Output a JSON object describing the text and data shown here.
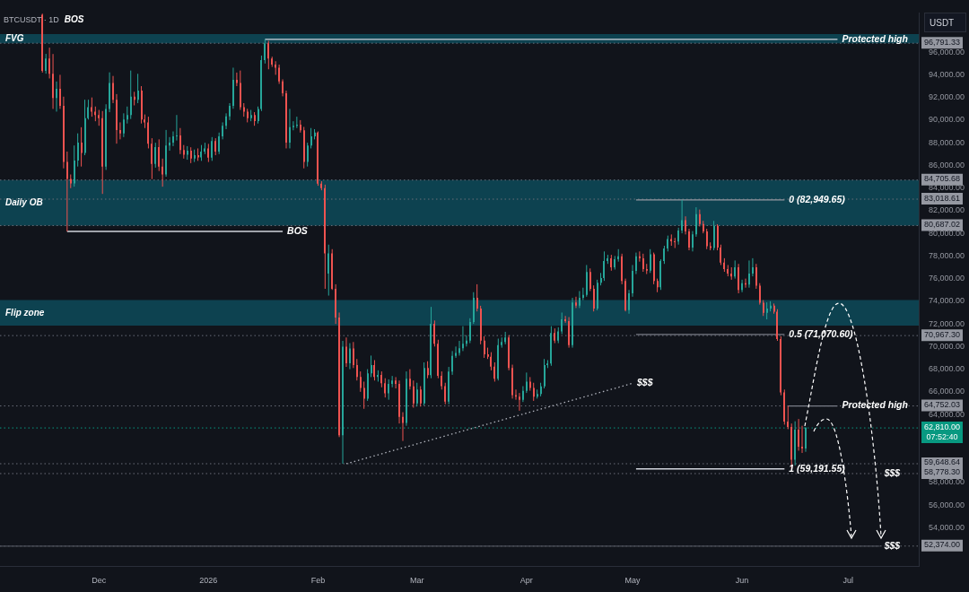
{
  "chart_data": {
    "type": "candlestick",
    "title": "BTCUSDT · 1D",
    "ylabel": "USDT",
    "x": [
      "2025-11-15",
      "2025-11-16",
      "2025-11-17",
      "2025-11-18",
      "2025-11-19",
      "2025-11-20",
      "2025-11-21",
      "2025-11-22",
      "2025-11-23",
      "2025-11-24",
      "2025-11-25",
      "2025-11-26",
      "2025-11-27",
      "2025-11-28",
      "2025-11-29",
      "2025-11-30",
      "2025-12-01",
      "2025-12-02",
      "2025-12-03",
      "2025-12-04",
      "2025-12-05",
      "2025-12-06",
      "2025-12-07",
      "2025-12-08",
      "2025-12-09",
      "2025-12-10",
      "2025-12-11",
      "2025-12-12",
      "2025-12-13",
      "2025-12-14",
      "2025-12-15",
      "2025-12-16",
      "2025-12-17",
      "2025-12-18",
      "2025-12-19",
      "2025-12-20",
      "2025-12-21",
      "2025-12-22",
      "2025-12-23",
      "2025-12-24",
      "2025-12-25",
      "2025-12-26",
      "2025-12-27",
      "2025-12-28",
      "2025-12-29",
      "2025-12-30",
      "2025-12-31",
      "2026-01-01",
      "2026-01-02",
      "2026-01-03",
      "2026-01-04",
      "2026-01-05",
      "2026-01-06",
      "2026-01-07",
      "2026-01-08",
      "2026-01-09",
      "2026-01-10",
      "2026-01-11",
      "2026-01-12",
      "2026-01-13",
      "2026-01-14",
      "2026-01-15",
      "2026-01-16",
      "2026-01-17",
      "2026-01-18",
      "2026-01-19",
      "2026-01-20",
      "2026-01-21",
      "2026-01-22",
      "2026-01-23",
      "2026-01-24",
      "2026-01-25",
      "2026-01-26",
      "2026-01-27",
      "2026-01-28",
      "2026-01-29",
      "2026-01-30",
      "2026-01-31",
      "2026-02-01",
      "2026-02-02",
      "2026-02-03",
      "2026-02-04",
      "2026-02-05",
      "2026-02-06",
      "2026-02-07",
      "2026-02-08",
      "2026-02-09",
      "2026-02-10",
      "2026-02-11",
      "2026-02-12",
      "2026-02-13",
      "2026-02-14",
      "2026-02-15",
      "2026-02-16",
      "2026-02-17",
      "2026-02-18",
      "2026-02-19",
      "2026-02-20",
      "2026-02-21",
      "2026-02-22",
      "2026-02-23",
      "2026-02-24",
      "2026-02-25",
      "2026-02-26",
      "2026-02-27",
      "2026-02-28",
      "2026-03-01",
      "2026-03-02",
      "2026-03-03",
      "2026-03-04",
      "2026-03-05",
      "2026-03-06",
      "2026-03-07",
      "2026-03-08",
      "2026-03-09",
      "2026-03-10",
      "2026-03-11",
      "2026-03-12",
      "2026-03-13",
      "2026-03-14",
      "2026-03-15",
      "2026-03-16",
      "2026-03-17",
      "2026-03-18",
      "2026-03-19",
      "2026-03-20",
      "2026-03-21",
      "2026-03-22",
      "2026-03-23",
      "2026-03-24",
      "2026-03-25",
      "2026-03-26",
      "2026-03-27",
      "2026-03-28",
      "2026-03-29",
      "2026-03-30",
      "2026-03-31",
      "2026-04-01",
      "2026-04-02",
      "2026-04-03",
      "2026-04-04",
      "2026-04-05",
      "2026-04-06",
      "2026-04-07",
      "2026-04-08",
      "2026-04-09",
      "2026-04-10",
      "2026-04-11",
      "2026-04-12",
      "2026-04-13",
      "2026-04-14",
      "2026-04-15",
      "2026-04-16",
      "2026-04-17",
      "2026-04-18",
      "2026-04-19",
      "2026-04-20",
      "2026-04-21",
      "2026-04-22",
      "2026-04-23",
      "2026-04-24",
      "2026-04-25",
      "2026-04-26",
      "2026-04-27",
      "2026-04-28",
      "2026-04-29",
      "2026-04-30",
      "2026-05-01",
      "2026-05-02",
      "2026-05-03",
      "2026-05-04",
      "2026-05-05",
      "2026-05-06",
      "2026-05-07",
      "2026-05-08",
      "2026-05-09",
      "2026-05-10",
      "2026-05-11",
      "2026-05-12",
      "2026-05-13",
      "2026-05-14",
      "2026-05-15",
      "2026-05-16",
      "2026-05-17",
      "2026-05-18",
      "2026-05-19",
      "2026-05-20",
      "2026-05-21",
      "2026-05-22",
      "2026-05-23",
      "2026-05-24",
      "2026-05-25",
      "2026-05-26",
      "2026-05-27",
      "2026-05-28",
      "2026-05-29",
      "2026-05-30",
      "2026-05-31",
      "2026-06-01",
      "2026-06-02",
      "2026-06-03",
      "2026-06-04",
      "2026-06-05",
      "2026-06-06",
      "2026-06-07",
      "2026-06-08",
      "2026-06-09",
      "2026-06-10",
      "2026-06-11",
      "2026-06-12",
      "2026-06-13",
      "2026-06-14",
      "2026-06-15",
      "2026-06-16",
      "2026-06-17",
      "2026-06-18",
      "2026-06-19"
    ],
    "ohlc": [
      [
        99300,
        99400,
        94200,
        94360
      ],
      [
        94360,
        95850,
        94100,
        95430
      ],
      [
        95430,
        96400,
        93680,
        94090
      ],
      [
        94090,
        95840,
        90990,
        91960
      ],
      [
        91960,
        93410,
        90750,
        92770
      ],
      [
        92770,
        94000,
        90990,
        91260
      ],
      [
        91260,
        92070,
        85740,
        86300
      ],
      [
        86300,
        87220,
        80170,
        84800
      ],
      [
        84800,
        85200,
        83990,
        84400
      ],
      [
        84400,
        87760,
        84120,
        86420
      ],
      [
        86420,
        88830,
        85900,
        88020
      ],
      [
        88020,
        89370,
        85900,
        87110
      ],
      [
        87110,
        91800,
        86900,
        90180
      ],
      [
        90180,
        91800,
        90050,
        91150
      ],
      [
        91150,
        92000,
        90300,
        90750
      ],
      [
        90750,
        91200,
        89900,
        90450
      ],
      [
        90450,
        90900,
        89500,
        90180
      ],
      [
        90180,
        90800,
        83480,
        85900
      ],
      [
        85900,
        91400,
        85600,
        90990
      ],
      [
        90990,
        94220,
        90700,
        93280
      ],
      [
        93280,
        93900,
        91500,
        91800
      ],
      [
        91800,
        92300,
        87920,
        89130
      ],
      [
        89130,
        89800,
        88300,
        88830
      ],
      [
        88830,
        90600,
        88500,
        90050
      ],
      [
        90050,
        91200,
        89700,
        90450
      ],
      [
        90450,
        94380,
        90100,
        92070
      ],
      [
        92070,
        92500,
        91300,
        91800
      ],
      [
        91800,
        94090,
        91500,
        92600
      ],
      [
        92600,
        93000,
        89700,
        90050
      ],
      [
        90050,
        90500,
        89300,
        89800
      ],
      [
        89800,
        90300,
        87500,
        87920
      ],
      [
        87920,
        88400,
        84790,
        86140
      ],
      [
        86140,
        88000,
        85800,
        87620
      ],
      [
        87620,
        88300,
        85500,
        85900
      ],
      [
        85900,
        86600,
        84120,
        85200
      ],
      [
        85200,
        89130,
        85000,
        87760
      ],
      [
        87760,
        88500,
        87300,
        88020
      ],
      [
        88020,
        89000,
        87700,
        88560
      ],
      [
        88560,
        90450,
        88200,
        88650
      ],
      [
        88650,
        89300,
        87000,
        87360
      ],
      [
        87360,
        87800,
        86600,
        86950
      ],
      [
        86950,
        87700,
        86500,
        87300
      ],
      [
        87300,
        87600,
        86200,
        86600
      ],
      [
        86600,
        87400,
        86300,
        86900
      ],
      [
        86900,
        87500,
        86400,
        86700
      ],
      [
        86700,
        87800,
        86400,
        87220
      ],
      [
        87220,
        88000,
        87000,
        87490
      ],
      [
        87490,
        87900,
        86300,
        86680
      ],
      [
        86680,
        88500,
        86400,
        88160
      ],
      [
        88160,
        88400,
        86900,
        87220
      ],
      [
        87220,
        88900,
        87000,
        88560
      ],
      [
        88560,
        89800,
        88300,
        89500
      ],
      [
        89500,
        90600,
        89200,
        90320
      ],
      [
        90320,
        91500,
        90000,
        91260
      ],
      [
        91260,
        94630,
        91000,
        93550
      ],
      [
        93550,
        94200,
        93000,
        93280
      ],
      [
        93280,
        94380,
        90900,
        91150
      ],
      [
        91150,
        91500,
        90300,
        90750
      ],
      [
        90750,
        91000,
        89800,
        90180
      ],
      [
        90180,
        90900,
        89900,
        90450
      ],
      [
        90450,
        90700,
        89500,
        89910
      ],
      [
        89910,
        91200,
        89700,
        90990
      ],
      [
        90990,
        95700,
        90800,
        95300
      ],
      [
        95300,
        97130,
        95000,
        96780
      ],
      [
        96780,
        97000,
        94490,
        95430
      ],
      [
        95430,
        95600,
        94700,
        94900
      ],
      [
        94900,
        95200,
        94000,
        94630
      ],
      [
        94630,
        94900,
        93200,
        93410
      ],
      [
        93410,
        93600,
        92100,
        92360
      ],
      [
        92360,
        92600,
        87500,
        88020
      ],
      [
        88020,
        90990,
        87500,
        89370
      ],
      [
        89370,
        89900,
        89100,
        89500
      ],
      [
        89500,
        90300,
        89300,
        89600
      ],
      [
        89600,
        90000,
        88900,
        89100
      ],
      [
        89100,
        89400,
        85740,
        86300
      ],
      [
        86300,
        88000,
        85900,
        87760
      ],
      [
        87760,
        89300,
        87500,
        88560
      ],
      [
        88560,
        89200,
        88300,
        88900
      ],
      [
        88900,
        89000,
        84200,
        84390
      ],
      [
        84390,
        84600,
        83800,
        84000
      ],
      [
        84000,
        84300,
        75100,
        78220
      ],
      [
        76450,
        79000,
        74500,
        78220
      ],
      [
        78220,
        78600,
        75000,
        75100
      ],
      [
        75100,
        75500,
        72000,
        72560
      ],
      [
        72560,
        73000,
        62000,
        62170
      ],
      [
        62170,
        70500,
        59648.64,
        69980
      ],
      [
        69980,
        70800,
        68200,
        68530
      ],
      [
        68530,
        70300,
        68000,
        69820
      ],
      [
        69820,
        70400,
        68100,
        68370
      ],
      [
        68370,
        68900,
        67000,
        67320
      ],
      [
        67320,
        67800,
        66000,
        66350
      ],
      [
        66350,
        66900,
        64500,
        65400
      ],
      [
        65400,
        68000,
        65200,
        67640
      ],
      [
        67640,
        69200,
        67300,
        68370
      ],
      [
        68370,
        68800,
        67000,
        67320
      ],
      [
        67320,
        67900,
        66900,
        67500
      ],
      [
        67500,
        67800,
        66400,
        66750
      ],
      [
        66750,
        67200,
        65500,
        65860
      ],
      [
        65860,
        67100,
        65300,
        66700
      ],
      [
        66700,
        67400,
        66400,
        67000
      ],
      [
        67000,
        67300,
        66300,
        66700
      ],
      [
        66700,
        67000,
        63200,
        63790
      ],
      [
        63790,
        64200,
        61660,
        63250
      ],
      [
        63250,
        67800,
        63000,
        67160
      ],
      [
        67160,
        68000,
        66200,
        66480
      ],
      [
        66480,
        67000,
        64600,
        64980
      ],
      [
        64980,
        66800,
        64700,
        66210
      ],
      [
        66210,
        66500,
        64700,
        64980
      ],
      [
        64980,
        68600,
        64800,
        68100
      ],
      [
        68100,
        68700,
        67200,
        67480
      ],
      [
        67480,
        73500,
        67200,
        72000
      ],
      [
        72000,
        72300,
        70000,
        70250
      ],
      [
        70250,
        70600,
        67200,
        67420
      ],
      [
        67420,
        67800,
        66200,
        66500
      ],
      [
        66500,
        66800,
        64900,
        65130
      ],
      [
        65130,
        68200,
        64900,
        67780
      ],
      [
        67780,
        69600,
        67500,
        69170
      ],
      [
        69170,
        70000,
        69000,
        69440
      ],
      [
        69440,
        70500,
        69200,
        69850
      ],
      [
        69850,
        71800,
        69600,
        70250
      ],
      [
        70250,
        71000,
        70000,
        70520
      ],
      [
        70520,
        72500,
        70300,
        72160
      ],
      [
        72160,
        74800,
        72000,
        74300
      ],
      [
        74300,
        75500,
        73100,
        73350
      ],
      [
        73350,
        73600,
        70200,
        70520
      ],
      [
        70520,
        70900,
        69000,
        69310
      ],
      [
        69310,
        69900,
        68900,
        69100
      ],
      [
        69100,
        69500,
        67900,
        68230
      ],
      [
        68230,
        68600,
        66900,
        67160
      ],
      [
        67160,
        70700,
        67000,
        70120
      ],
      [
        70120,
        70800,
        69900,
        70400
      ],
      [
        70400,
        71300,
        70200,
        70790
      ],
      [
        70790,
        71000,
        67900,
        68100
      ],
      [
        68100,
        68400,
        65400,
        65700
      ],
      [
        65700,
        66200,
        65300,
        65570
      ],
      [
        65570,
        65900,
        64330,
        65300
      ],
      [
        65300,
        66500,
        65100,
        66080
      ],
      [
        66080,
        67700,
        65900,
        66890
      ],
      [
        66890,
        67300,
        66100,
        66350
      ],
      [
        66350,
        66800,
        65200,
        65570
      ],
      [
        65570,
        66200,
        65400,
        65800
      ],
      [
        65800,
        66800,
        65600,
        66480
      ],
      [
        66480,
        68900,
        66300,
        68370
      ],
      [
        68370,
        68800,
        68100,
        68500
      ],
      [
        68500,
        71800,
        68300,
        71190
      ],
      [
        71190,
        71600,
        70300,
        70520
      ],
      [
        70520,
        71700,
        70300,
        71330
      ],
      [
        71330,
        73000,
        71100,
        72400
      ],
      [
        72400,
        72700,
        72100,
        72250
      ],
      [
        72250,
        72600,
        69900,
        70120
      ],
      [
        70120,
        74300,
        69900,
        73890
      ],
      [
        73890,
        74400,
        73400,
        73620
      ],
      [
        73620,
        74900,
        73400,
        74300
      ],
      [
        74300,
        75200,
        74100,
        74570
      ],
      [
        74570,
        77200,
        74400,
        76590
      ],
      [
        76590,
        76900,
        74900,
        75100
      ],
      [
        75100,
        75400,
        73100,
        73350
      ],
      [
        73350,
        75900,
        73200,
        75640
      ],
      [
        75640,
        76500,
        75400,
        76050
      ],
      [
        76050,
        78400,
        75800,
        77560
      ],
      [
        77560,
        78100,
        77300,
        77800
      ],
      [
        77800,
        78100,
        76700,
        76990
      ],
      [
        76990,
        78000,
        76800,
        77710
      ],
      [
        77710,
        78600,
        77500,
        77970
      ],
      [
        77970,
        78200,
        75500,
        75800
      ],
      [
        75800,
        76000,
        73100,
        73220
      ],
      [
        73220,
        75000,
        72900,
        74700
      ],
      [
        74700,
        77200,
        74400,
        76690
      ],
      [
        76690,
        78300,
        76400,
        77970
      ],
      [
        77970,
        78400,
        77500,
        77800
      ],
      [
        77800,
        78200,
        76600,
        76850
      ],
      [
        76850,
        77300,
        76400,
        76700
      ],
      [
        76700,
        78600,
        76500,
        78140
      ],
      [
        78140,
        78300,
        75500,
        75800
      ],
      [
        75800,
        76000,
        74800,
        75230
      ],
      [
        75230,
        77700,
        75000,
        77560
      ],
      [
        77560,
        78900,
        77300,
        78670
      ],
      [
        78670,
        79800,
        78400,
        79500
      ],
      [
        79500,
        79900,
        78900,
        79300
      ],
      [
        79300,
        79600,
        78700,
        79270
      ],
      [
        79270,
        80500,
        79000,
        80250
      ],
      [
        80250,
        82949.65,
        80000,
        81160
      ],
      [
        81160,
        81500,
        79900,
        80170
      ],
      [
        80170,
        80400,
        78500,
        78740
      ],
      [
        78740,
        80200,
        78400,
        79910
      ],
      [
        79910,
        82300,
        79700,
        81700
      ],
      [
        81700,
        82100,
        80600,
        80820
      ],
      [
        80820,
        81100,
        80000,
        80170
      ],
      [
        80170,
        80400,
        78600,
        78870
      ],
      [
        78870,
        79200,
        78500,
        78700
      ],
      [
        78700,
        81100,
        78500,
        80660
      ],
      [
        80660,
        80800,
        78500,
        78740
      ],
      [
        78740,
        79000,
        77200,
        77420
      ],
      [
        77420,
        77800,
        76600,
        76850
      ],
      [
        76850,
        77200,
        76200,
        76450
      ],
      [
        76450,
        77000,
        75900,
        76180
      ],
      [
        76180,
        77600,
        76000,
        76990
      ],
      [
        76990,
        77300,
        74700,
        75000
      ],
      [
        75000,
        75900,
        74800,
        75600
      ],
      [
        75600,
        76000,
        75200,
        75480
      ],
      [
        75480,
        77600,
        75200,
        76450
      ],
      [
        76450,
        77800,
        76200,
        76990
      ],
      [
        76990,
        77300,
        75100,
        75370
      ],
      [
        75370,
        75600,
        73700,
        73860
      ],
      [
        73860,
        74100,
        72700,
        72970
      ],
      [
        72970,
        73900,
        72400,
        73350
      ],
      [
        73350,
        74000,
        73100,
        73620
      ],
      [
        73620,
        73800,
        72900,
        73080
      ],
      [
        73080,
        73300,
        70500,
        70660
      ],
      [
        70660,
        70900,
        65700,
        65940
      ],
      [
        65940,
        66200,
        63100,
        63380
      ],
      [
        63380,
        64752.03,
        62700,
        62900
      ],
      [
        62900,
        63200,
        59191.55,
        60000
      ],
      [
        60000,
        63400,
        59500,
        62660
      ],
      [
        62660,
        63600,
        60800,
        61150
      ],
      [
        61150,
        63000,
        60600,
        61000
      ],
      [
        61000,
        62900,
        60700,
        62810
      ]
    ],
    "series": [
      {
        "type": "line",
        "x": [
          "2026-01-17",
          "2026-06-28"
        ],
        "values": [
          97130,
          97130
        ],
        "color": "#d1d4dc",
        "line_style": "solid"
      },
      {
        "type": "line",
        "x": [
          "2025-11-22",
          "2026-01-22"
        ],
        "values": [
          80170,
          80170
        ],
        "color": "#d1d4dc",
        "line_style": "solid"
      },
      {
        "type": "line",
        "x": [
          "2026-05-02",
          "2026-06-13"
        ],
        "values": [
          82949.65,
          82949.65
        ],
        "color": "#9598a1",
        "line_style": "solid"
      },
      {
        "type": "line",
        "x": [
          "2026-05-02",
          "2026-06-13"
        ],
        "values": [
          71070.6,
          71070.6
        ],
        "color": "#787b86",
        "line_style": "solid"
      },
      {
        "type": "line",
        "x": [
          "2026-05-02",
          "2026-06-13"
        ],
        "values": [
          59191.55,
          59191.55
        ],
        "color": "#d1d4dc",
        "line_style": "solid"
      },
      {
        "type": "line",
        "x": [
          "2026-06-14",
          "2026-06-28"
        ],
        "values": [
          64752.03,
          64752.03
        ],
        "color": "#787b86",
        "line_style": "solid"
      },
      {
        "type": "line",
        "x": [
          "2026-02-09",
          "2026-05-01"
        ],
        "values": [
          59648.64,
          66750
        ],
        "color": "#b2b5be",
        "line_style": "dotted"
      },
      {
        "type": "line",
        "x": [
          "2025-11-03",
          "2026-07-10"
        ],
        "values": [
          52374,
          52374
        ],
        "color": "#4a4e59",
        "line_style": "solid"
      }
    ],
    "bands": [
      {
        "axis": "y",
        "from": 96791.33,
        "to": 97600,
        "label": "FVG",
        "color": "#0d4250"
      },
      {
        "axis": "y",
        "from": 80687.02,
        "to": 84705.68,
        "label": "Daily OB",
        "color": "#0d4250"
      },
      {
        "axis": "y",
        "from": 71840,
        "to": 74100,
        "label": "Flip zone",
        "color": "#0d4250"
      }
    ],
    "ref_lines": [
      {
        "axis": "y",
        "value": 96791.33,
        "label": "96,791.33",
        "line_style": "dotted"
      },
      {
        "axis": "y",
        "value": 84705.68,
        "label": "84,705.68",
        "line_style": "dotted"
      },
      {
        "axis": "y",
        "value": 83018.61,
        "label": "83,018.61",
        "line_style": "dotted"
      },
      {
        "axis": "y",
        "value": 80687.02,
        "label": "80,687.02",
        "line_style": "dotted"
      },
      {
        "axis": "y",
        "value": 70967.3,
        "label": "70,967.30",
        "line_style": "dotted"
      },
      {
        "axis": "y",
        "value": 64752.03,
        "label": "64,752.03",
        "line_style": "dotted"
      },
      {
        "axis": "y",
        "value": 62810,
        "label": "62,810.00\n07:52:40",
        "color": "#089981",
        "line_style": "dotted"
      },
      {
        "axis": "y",
        "value": 59648.64,
        "label": "59,648.64",
        "line_style": "dotted"
      },
      {
        "axis": "y",
        "value": 58778.3,
        "label": "58,778.30",
        "line_style": "dotted"
      },
      {
        "axis": "y",
        "value": 52374,
        "label": "52,374.00",
        "line_style": "dotted"
      }
    ],
    "annotations": [
      "BOS",
      {
        "text": "Protected high",
        "x": "2026-06-28",
        "y": 97130
      },
      {
        "text": "BOS",
        "x": "2026-01-22",
        "y": 80170
      },
      {
        "text": "0 (82,949.65)",
        "x": "2026-06-13",
        "y": 82949.65
      },
      {
        "text": "0.5 (71,070.60)",
        "x": "2026-06-13",
        "y": 71070.6
      },
      {
        "text": "1 (59,191.55)",
        "x": "2026-06-13",
        "y": 59191.55
      },
      {
        "text": "Protected high",
        "x": "2026-06-28",
        "y": 64752.03
      },
      {
        "text": "$$$",
        "x": "2026-05-01",
        "y": 66750
      },
      {
        "text": "$$$",
        "x": "2026-07-10",
        "y": 58778.3
      },
      {
        "text": "$$$",
        "x": "2026-07-10",
        "y": 52374
      }
    ],
    "xlim": [
      "2025-11-03",
      "2026-07-21"
    ],
    "xticks": [
      {
        "value": "2025-12-01",
        "label": "Dec"
      },
      {
        "value": "2026-01-01",
        "label": "2026"
      },
      {
        "value": "2026-02-01",
        "label": "Feb"
      },
      {
        "value": "2026-03-01",
        "label": "Mar"
      },
      {
        "value": "2026-04-01",
        "label": "Apr"
      },
      {
        "value": "2026-05-01",
        "label": "May"
      },
      {
        "value": "2026-06-01",
        "label": "Jun"
      },
      {
        "value": "2026-07-01",
        "label": "Jul"
      }
    ],
    "ylim": [
      50600,
      99500
    ],
    "yticks": [
      {
        "value": 54000,
        "label": "54,000.00"
      },
      {
        "value": 56000,
        "label": "56,000.00"
      },
      {
        "value": 58000,
        "label": "58,000.00"
      },
      {
        "value": 64000,
        "label": "64,000.00"
      },
      {
        "value": 66000,
        "label": "66,000.00"
      },
      {
        "value": 68000,
        "label": "68,000.00"
      },
      {
        "value": 70000,
        "label": "70,000.00"
      },
      {
        "value": 72000,
        "label": "72,000.00"
      },
      {
        "value": 74000,
        "label": "74,000.00"
      },
      {
        "value": 76000,
        "label": "76,000.00"
      },
      {
        "value": 78000,
        "label": "78,000.00"
      },
      {
        "value": 80000,
        "label": "80,000.00"
      },
      {
        "value": 82000,
        "label": "82,000.00"
      },
      {
        "value": 84000,
        "label": "84,000.00"
      },
      {
        "value": 86000,
        "label": "86,000.00"
      },
      {
        "value": 88000,
        "label": "88,000.00"
      },
      {
        "value": 90000,
        "label": "90,000.00"
      },
      {
        "value": 92000,
        "label": "92,000.00"
      },
      {
        "value": 94000,
        "label": "94,000.00"
      },
      {
        "value": 96000,
        "label": "96,000.00"
      }
    ]
  }
}
